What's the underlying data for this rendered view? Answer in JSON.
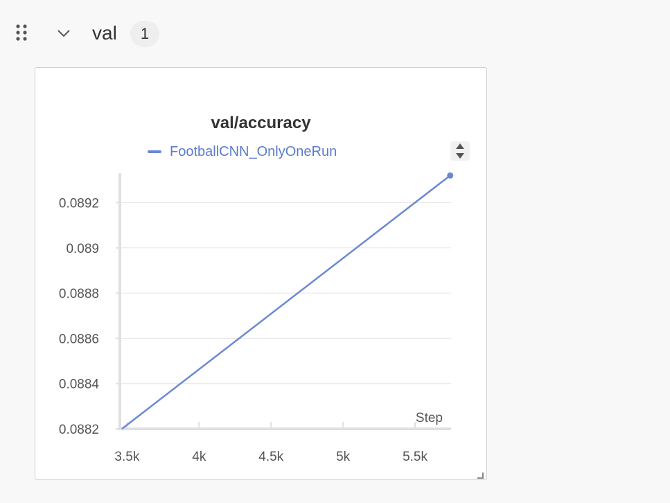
{
  "section": {
    "title": "val",
    "count": "1"
  },
  "chart_data": {
    "type": "line",
    "title": "val/accuracy",
    "xlabel": "Step",
    "ylabel": "",
    "xlim": [
      3450,
      5750
    ],
    "ylim": [
      0.0882,
      0.08933
    ],
    "x_ticks": [
      {
        "value": 3500,
        "label": "3.5k"
      },
      {
        "value": 4000,
        "label": "4k"
      },
      {
        "value": 4500,
        "label": "4.5k"
      },
      {
        "value": 5000,
        "label": "5k"
      },
      {
        "value": 5500,
        "label": "5.5k"
      }
    ],
    "y_ticks": [
      {
        "value": 0.0882,
        "label": "0.0882"
      },
      {
        "value": 0.0884,
        "label": "0.0884"
      },
      {
        "value": 0.0886,
        "label": "0.0886"
      },
      {
        "value": 0.0888,
        "label": "0.0888"
      },
      {
        "value": 0.089,
        "label": "0.089"
      },
      {
        "value": 0.0892,
        "label": "0.0892"
      }
    ],
    "grid": true,
    "series": [
      {
        "name": "FootballCNN_OnlyOneRun",
        "color": "#6a88d4",
        "x": [
          3464,
          5744
        ],
        "y": [
          0.0882,
          0.08932
        ]
      }
    ]
  }
}
